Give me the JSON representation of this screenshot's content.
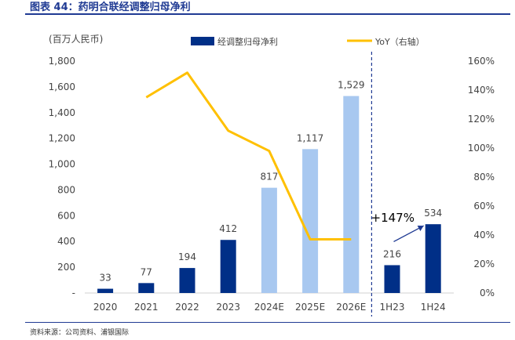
{
  "figure_title": "图表 44：药明合联经调整归母净利",
  "source": "资料来源：公司资料、浦银国际",
  "chart_data": {
    "type": "bar",
    "title": "药明合联经调整归母净利",
    "categories": [
      "2020",
      "2021",
      "2022",
      "2023",
      "2024E",
      "2025E",
      "2026E",
      "1H23",
      "1H24"
    ],
    "series": [
      {
        "name": "经调整归母净利",
        "type": "bar",
        "values": [
          33,
          77,
          194,
          412,
          817,
          1117,
          1529,
          216,
          534
        ],
        "labels": [
          "33",
          "77",
          "194",
          "412",
          "817",
          "1,117",
          "1,529",
          "216",
          "534"
        ],
        "color": "#002f87",
        "estimate_color": "#a8c8f0",
        "estimate_flags": [
          false,
          false,
          false,
          false,
          true,
          true,
          true,
          false,
          false
        ]
      },
      {
        "name": "YoY（右轴）",
        "type": "line",
        "axis": "right",
        "values": [
          null,
          135,
          152,
          112,
          98,
          37,
          37,
          null,
          null
        ],
        "color": "#ffc000"
      }
    ],
    "left_axis": {
      "label": "(百万人民币)",
      "min": 0,
      "max": 1800,
      "ticks": [
        0,
        200,
        400,
        600,
        800,
        1000,
        1200,
        1400,
        1600,
        1800
      ],
      "tick_labels": [
        "-",
        "200",
        "400",
        "600",
        "800",
        "1,000",
        "1,200",
        "1,400",
        "1,600",
        "1,800"
      ]
    },
    "right_axis": {
      "min": 0,
      "max": 160,
      "ticks": [
        0,
        20,
        40,
        60,
        80,
        100,
        120,
        140,
        160
      ],
      "tick_labels": [
        "0%",
        "20%",
        "40%",
        "60%",
        "80%",
        "100%",
        "120%",
        "140%",
        "160%"
      ]
    },
    "divider_after": "2026E",
    "annotation": {
      "text": "+147%",
      "from": "1H23",
      "to": "1H24"
    },
    "legend_position": "top"
  }
}
